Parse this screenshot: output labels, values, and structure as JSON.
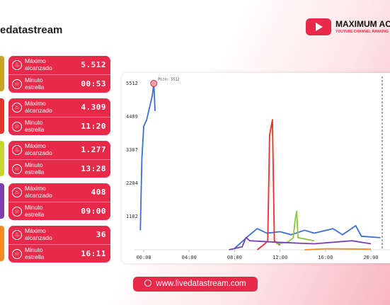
{
  "header": {
    "brand": "edatastream",
    "channel": "MAXIMUM ACI",
    "subtitle": "YOUTUBE CHANNEL RANKING"
  },
  "cards": [
    {
      "color": "#c9a227",
      "max_label": "Máximo alcanzado",
      "max_value": "5.512",
      "minute_label": "Minuto estrella",
      "minute_value": "00:53"
    },
    {
      "color": "#e5332a",
      "max_label": "Máximo alcanzado",
      "max_value": "4.309",
      "minute_label": "Minuto estrella",
      "minute_value": "11:20"
    },
    {
      "color": "#c6d92b",
      "max_label": "Máximo alcanzado",
      "max_value": "1.277",
      "minute_label": "Minuto estrella",
      "minute_value": "13:28"
    },
    {
      "color": "#7b3fb3",
      "max_label": "Máximo alcanzado",
      "max_value": "408",
      "minute_label": "Minuto estrella",
      "minute_value": "09:00"
    },
    {
      "color": "#f28c28",
      "max_label": "Máximo alcanzado",
      "max_value": "36",
      "minute_label": "Minuto estrella",
      "minute_value": "16:11"
    }
  ],
  "footer": {
    "url": "www.livedatastream.com"
  },
  "chart_data": {
    "type": "line",
    "annotation": "Pico: 5512",
    "peak": {
      "x": 53,
      "y": 5512
    },
    "current_x": 1260,
    "xlim": [
      -49,
      1301
    ],
    "ylim": [
      0,
      5745
    ],
    "xticks": [
      {
        "value": 0,
        "label": "00:00"
      },
      {
        "value": 240,
        "label": "04:00"
      },
      {
        "value": 480,
        "label": "08:00"
      },
      {
        "value": 720,
        "label": "12:00"
      },
      {
        "value": 960,
        "label": "16:00"
      },
      {
        "value": 1200,
        "label": "20:00"
      }
    ],
    "yticks": [
      1102,
      2204,
      3307,
      4409,
      5512
    ],
    "series": [
      {
        "color": "#3b6fd8",
        "x": [
          -18,
          -10,
          0,
          15,
          30,
          45,
          53,
          60,
          90,
          480,
          560,
          600,
          650,
          720,
          780,
          850,
          900,
          1000,
          1050,
          1120,
          1150,
          1250
        ],
        "values": [
          650,
          3000,
          4100,
          4300,
          4700,
          5100,
          5512,
          4600,
          null,
          50,
          500,
          700,
          550,
          600,
          500,
          650,
          550,
          700,
          500,
          800,
          450,
          400
        ]
      },
      {
        "color": "#e5332a",
        "x": [
          600,
          640,
          655,
          665,
          680,
          690,
          720
        ],
        "values": [
          0,
          200,
          300,
          3800,
          4309,
          300,
          150
        ]
      },
      {
        "color": "#8cc63f",
        "x": [
          700,
          760,
          790,
          800,
          808,
          815,
          900
        ],
        "values": [
          200,
          250,
          400,
          1000,
          1277,
          400,
          300
        ]
      },
      {
        "color": "#7b3fb3",
        "x": [
          450,
          520,
          540,
          560,
          700,
          900,
          1100,
          1200
        ],
        "values": [
          0,
          100,
          408,
          300,
          250,
          200,
          300,
          200
        ]
      },
      {
        "color": "#f28c28",
        "x": [
          850,
          971,
          1200
        ],
        "values": [
          0,
          36,
          20
        ]
      }
    ]
  }
}
